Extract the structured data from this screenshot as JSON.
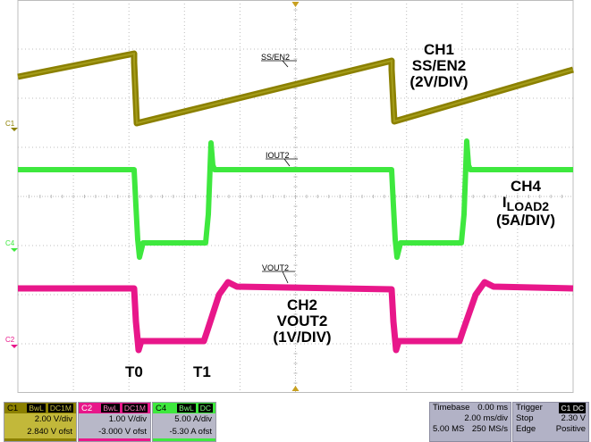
{
  "annotations": {
    "ch1": {
      "line1": "CH1",
      "line2": "SS/EN2",
      "line3": "(2V/DIV)"
    },
    "ch4": {
      "line1": "CH4",
      "line2_main": "I",
      "line2_sub": "LOAD2",
      "line3": "(5A/DIV)"
    },
    "ch2": {
      "line1": "CH2",
      "line2": "VOUT2",
      "line3": "(1V/DIV)"
    },
    "t0": "T0",
    "t1": "T1"
  },
  "trace_tags": {
    "ss": "SS/EN2",
    "iout": "IOUT2",
    "vout": "VOUT2"
  },
  "channel_markers": {
    "c1": "C1",
    "c4": "C4",
    "c2": "C2"
  },
  "channels": [
    {
      "id": "C1",
      "tags": [
        "BwL",
        "DC1M"
      ],
      "scale": "2.00 V/div",
      "offset": "2.840 V ofst",
      "color": "#8b8000"
    },
    {
      "id": "C2",
      "tags": [
        "BwL",
        "DC1M"
      ],
      "scale": "1.00 V/div",
      "offset": "-3.000 V ofst",
      "color": "#e8178a"
    },
    {
      "id": "C4",
      "tags": [
        "BwL",
        "DC"
      ],
      "scale": "5.00 A/div",
      "offset": "-5.30 A ofst",
      "color": "#3ee83e"
    }
  ],
  "timebase": {
    "label": "Timebase",
    "value": "0.00 ms",
    "row2_right": "2.00 ms/div",
    "row3_left": "5.00 MS",
    "row3_right": "250 MS/s"
  },
  "trigger": {
    "label": "Trigger",
    "badge": "C1 DC",
    "row2_left": "Stop",
    "row2_right": "2.30 V",
    "row3_left": "Edge",
    "row3_right": "Positive"
  },
  "colors": {
    "ch1": "#8b8000",
    "ch2": "#e8178a",
    "ch4": "#3ee83e",
    "grid": "#bcbcbc",
    "status_bg": "#b2b2c6"
  }
}
